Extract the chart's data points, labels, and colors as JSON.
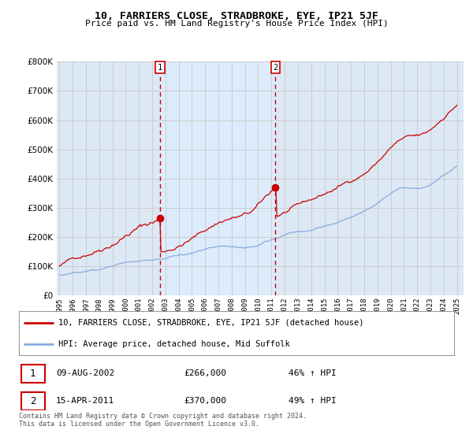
{
  "title": "10, FARRIERS CLOSE, STRADBROKE, EYE, IP21 5JF",
  "subtitle": "Price paid vs. HM Land Registry's House Price Index (HPI)",
  "legend_line1": "10, FARRIERS CLOSE, STRADBROKE, EYE, IP21 5JF (detached house)",
  "legend_line2": "HPI: Average price, detached house, Mid Suffolk",
  "sale1_date": "09-AUG-2002",
  "sale1_price": "£266,000",
  "sale1_hpi": "46% ↑ HPI",
  "sale2_date": "15-APR-2011",
  "sale2_price": "£370,000",
  "sale2_hpi": "49% ↑ HPI",
  "footer": "Contains HM Land Registry data © Crown copyright and database right 2024.\nThis data is licensed under the Open Government Licence v3.0.",
  "ylim": [
    0,
    800000
  ],
  "yticks": [
    0,
    100000,
    200000,
    300000,
    400000,
    500000,
    600000,
    700000,
    800000
  ],
  "line_color_red": "#cc0000",
  "line_color_blue": "#88aadd",
  "sale_marker_color": "#cc0000",
  "vline_color": "#cc0000",
  "grid_color": "#cccccc",
  "bg_color": "#dde8f5",
  "plot_bg": "#ffffff",
  "shade_color": "#ddeeff",
  "sale1_year": 2002.6,
  "sale2_year": 2011.3,
  "sale1_price_val": 266000,
  "sale2_price_val": 370000
}
